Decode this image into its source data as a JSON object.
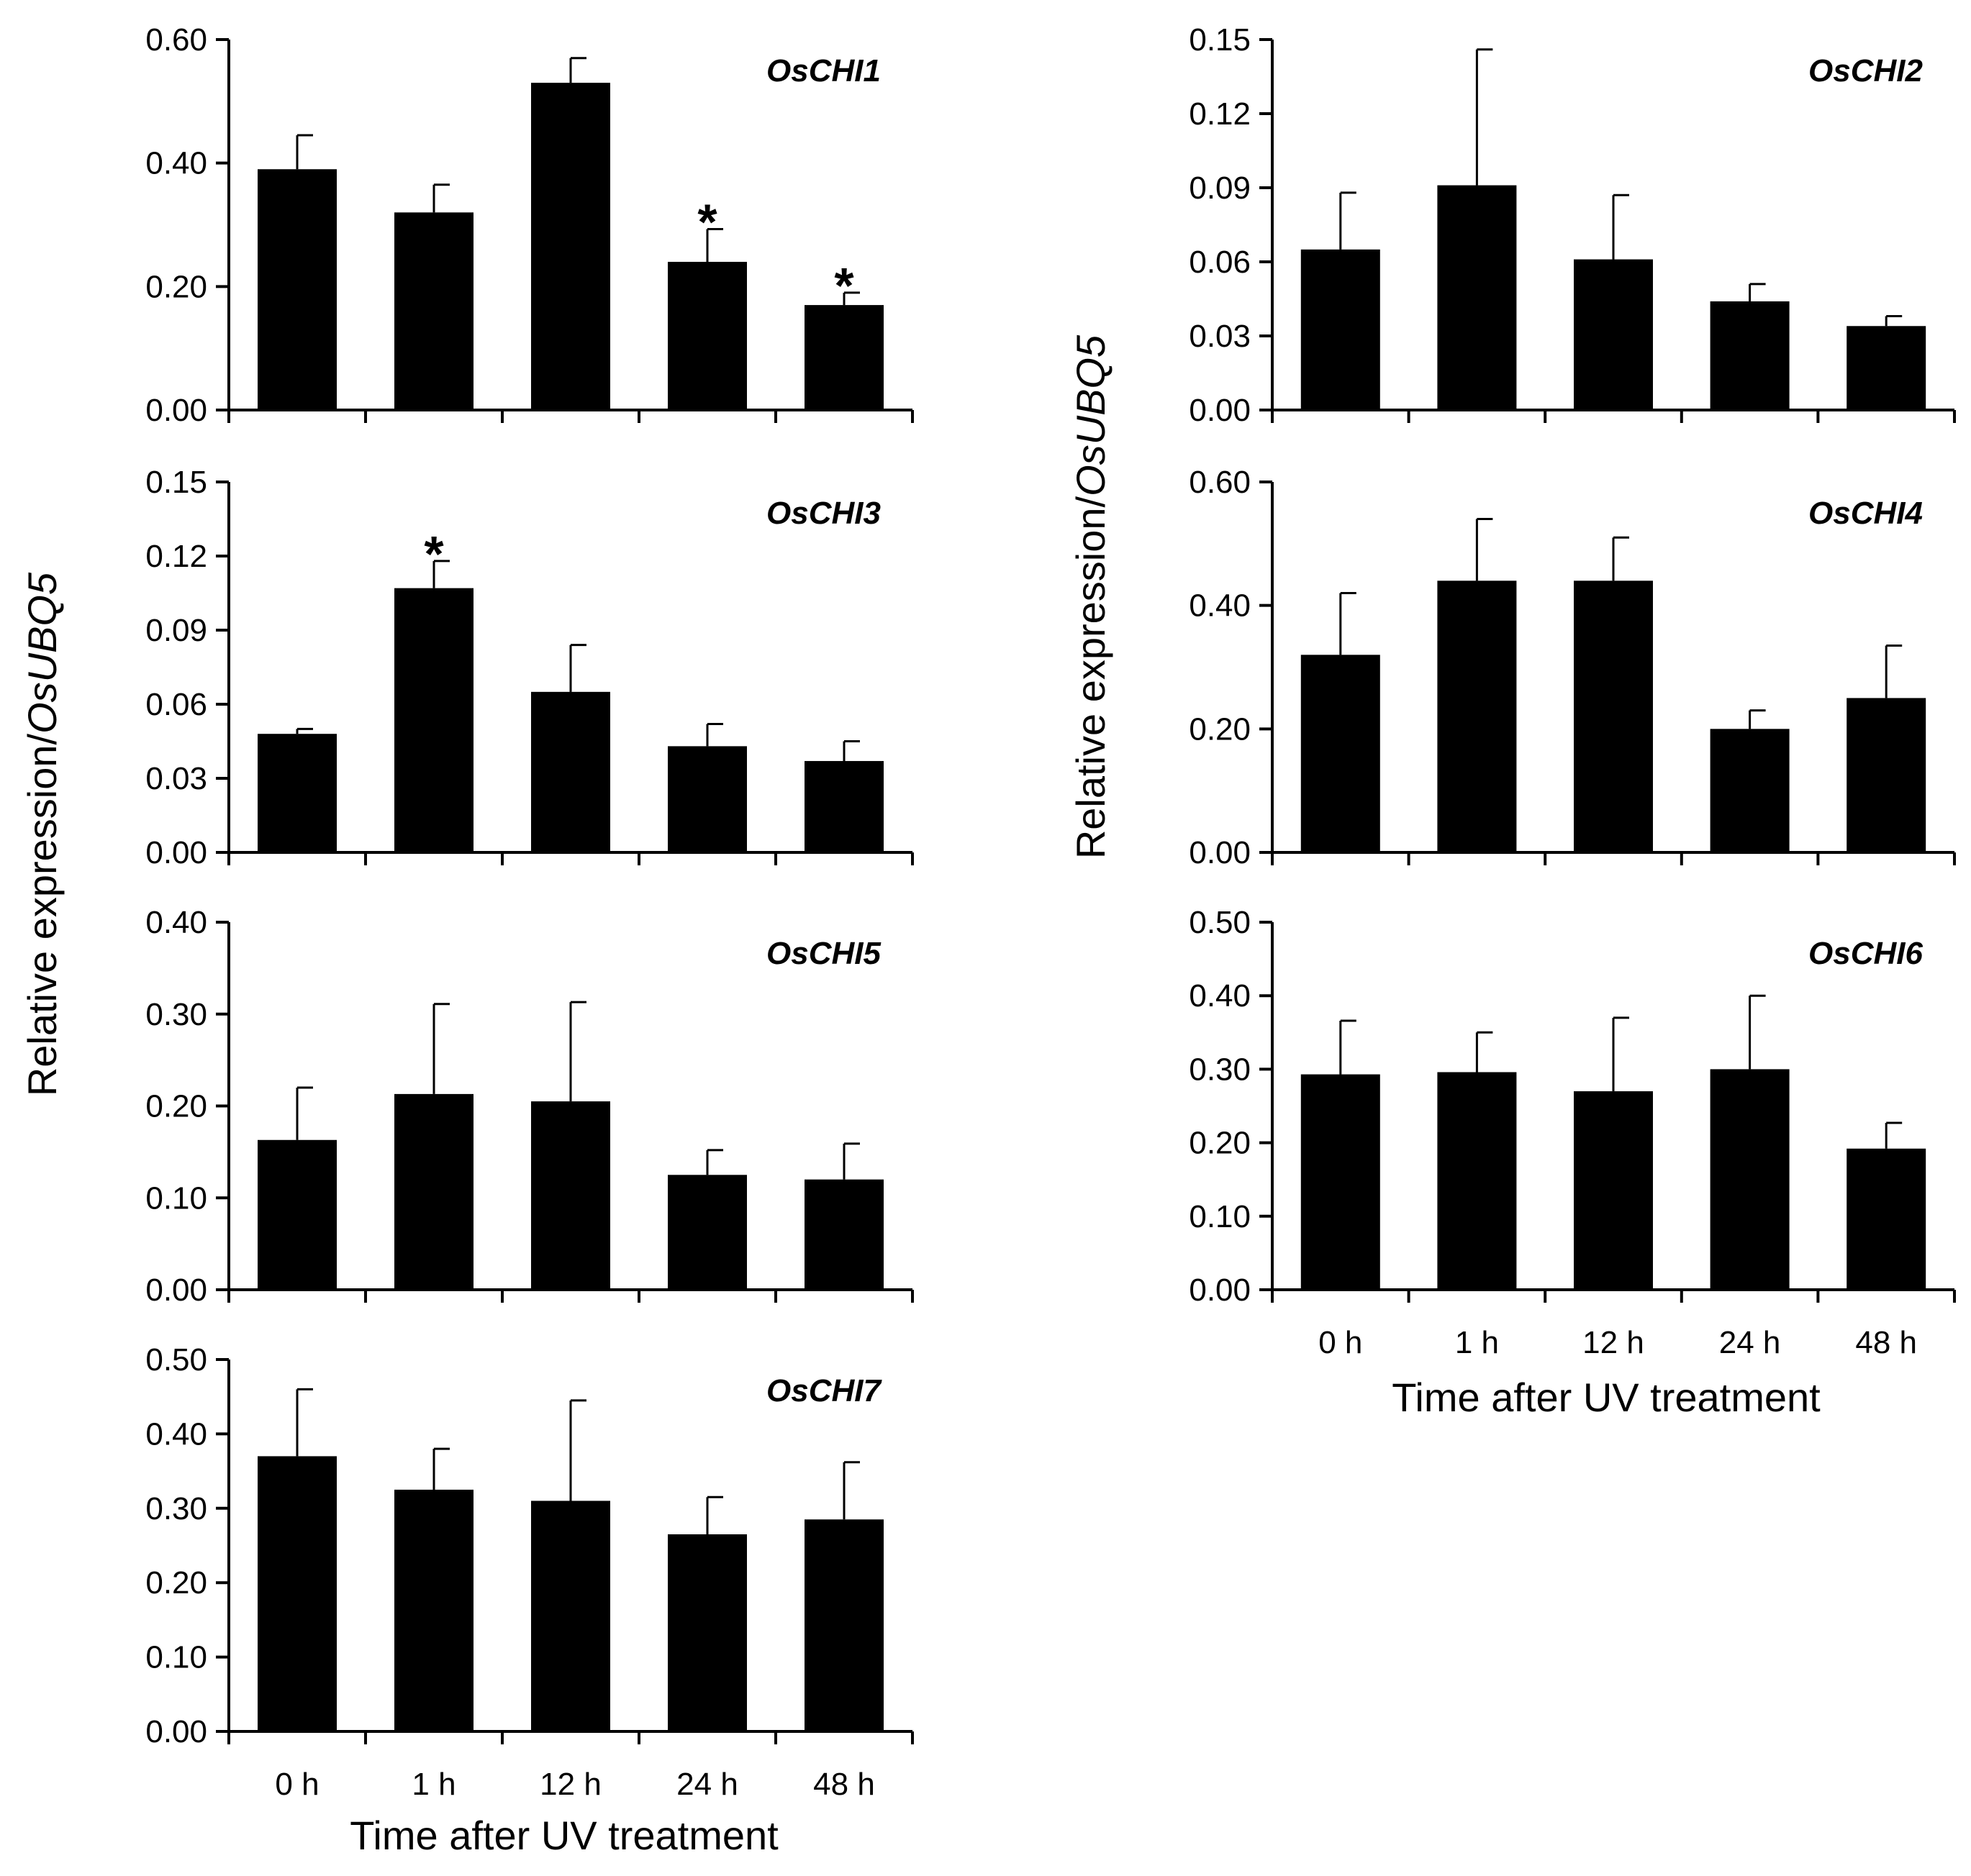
{
  "figure": {
    "ylabel_prefix": "Relative expression/",
    "ylabel_gene": "OsUBQ5",
    "xlabel": "Time after UV treatment"
  },
  "chart_data": [
    {
      "type": "bar",
      "title": "OsCHI1",
      "categories": [
        "0 h",
        "1 h",
        "12 h",
        "24 h",
        "48 h"
      ],
      "values": [
        0.39,
        0.32,
        0.53,
        0.24,
        0.17
      ],
      "errors": [
        0.055,
        0.045,
        0.04,
        0.053,
        0.02
      ],
      "significant": [
        false,
        false,
        false,
        true,
        true
      ],
      "ylim": [
        0,
        0.6
      ],
      "yticks": [
        "0.00",
        "0.20",
        "0.40",
        "0.60"
      ],
      "xlabel": "",
      "ylabel": "Relative expression/OsUBQ5"
    },
    {
      "type": "bar",
      "title": "OsCHI2",
      "categories": [
        "0 h",
        "1 h",
        "12 h",
        "24 h",
        "48 h"
      ],
      "values": [
        0.065,
        0.091,
        0.061,
        0.044,
        0.034
      ],
      "errors": [
        0.023,
        0.055,
        0.026,
        0.007,
        0.004
      ],
      "significant": [
        false,
        false,
        false,
        false,
        false
      ],
      "ylim": [
        0,
        0.15
      ],
      "yticks": [
        "0.00",
        "0.03",
        "0.06",
        "0.09",
        "0.12",
        "0.15"
      ],
      "xlabel": "",
      "ylabel": "Relative expression/OsUBQ5"
    },
    {
      "type": "bar",
      "title": "OsCHI3",
      "categories": [
        "0 h",
        "1 h",
        "12 h",
        "24 h",
        "48 h"
      ],
      "values": [
        0.048,
        0.107,
        0.065,
        0.043,
        0.037
      ],
      "errors": [
        0.002,
        0.011,
        0.019,
        0.009,
        0.008
      ],
      "significant": [
        false,
        true,
        false,
        false,
        false
      ],
      "ylim": [
        0,
        0.15
      ],
      "yticks": [
        "0.00",
        "0.03",
        "0.06",
        "0.09",
        "0.12",
        "0.15"
      ],
      "xlabel": "",
      "ylabel": "Relative expression/OsUBQ5"
    },
    {
      "type": "bar",
      "title": "OsCHI4",
      "categories": [
        "0 h",
        "1 h",
        "12 h",
        "24 h",
        "48 h"
      ],
      "values": [
        0.32,
        0.44,
        0.44,
        0.2,
        0.25
      ],
      "errors": [
        0.1,
        0.1,
        0.07,
        0.03,
        0.085
      ],
      "significant": [
        false,
        false,
        false,
        false,
        false
      ],
      "ylim": [
        0,
        0.6
      ],
      "yticks": [
        "0.00",
        "0.20",
        "0.40",
        "0.60"
      ],
      "xlabel": "",
      "ylabel": "Relative expression/OsUBQ5"
    },
    {
      "type": "bar",
      "title": "OsCHI5",
      "categories": [
        "0 h",
        "1 h",
        "12 h",
        "24 h",
        "48 h"
      ],
      "values": [
        0.163,
        0.213,
        0.205,
        0.125,
        0.12
      ],
      "errors": [
        0.057,
        0.098,
        0.108,
        0.027,
        0.039
      ],
      "significant": [
        false,
        false,
        false,
        false,
        false
      ],
      "ylim": [
        0,
        0.4
      ],
      "yticks": [
        "0.00",
        "0.10",
        "0.20",
        "0.30",
        "0.40"
      ],
      "xlabel": "",
      "ylabel": "Relative expression/OsUBQ5"
    },
    {
      "type": "bar",
      "title": "OsCHI6",
      "categories": [
        "0 h",
        "1 h",
        "12 h",
        "24 h",
        "48 h"
      ],
      "values": [
        0.293,
        0.296,
        0.27,
        0.3,
        0.192
      ],
      "errors": [
        0.073,
        0.054,
        0.1,
        0.1,
        0.035
      ],
      "significant": [
        false,
        false,
        false,
        false,
        false
      ],
      "ylim": [
        0,
        0.5
      ],
      "yticks": [
        "0.00",
        "0.10",
        "0.20",
        "0.30",
        "0.40",
        "0.50"
      ],
      "xlabel": "Time after UV treatment",
      "ylabel": "Relative expression/OsUBQ5"
    },
    {
      "type": "bar",
      "title": "OsCHI7",
      "categories": [
        "0 h",
        "1 h",
        "12 h",
        "24 h",
        "48 h"
      ],
      "values": [
        0.37,
        0.325,
        0.31,
        0.265,
        0.285
      ],
      "errors": [
        0.09,
        0.055,
        0.135,
        0.05,
        0.077
      ],
      "significant": [
        false,
        false,
        false,
        false,
        false
      ],
      "ylim": [
        0,
        0.5
      ],
      "yticks": [
        "0.00",
        "0.10",
        "0.20",
        "0.30",
        "0.40",
        "0.50"
      ],
      "xlabel": "Time after UV treatment",
      "ylabel": "Relative expression/OsUBQ5"
    }
  ]
}
